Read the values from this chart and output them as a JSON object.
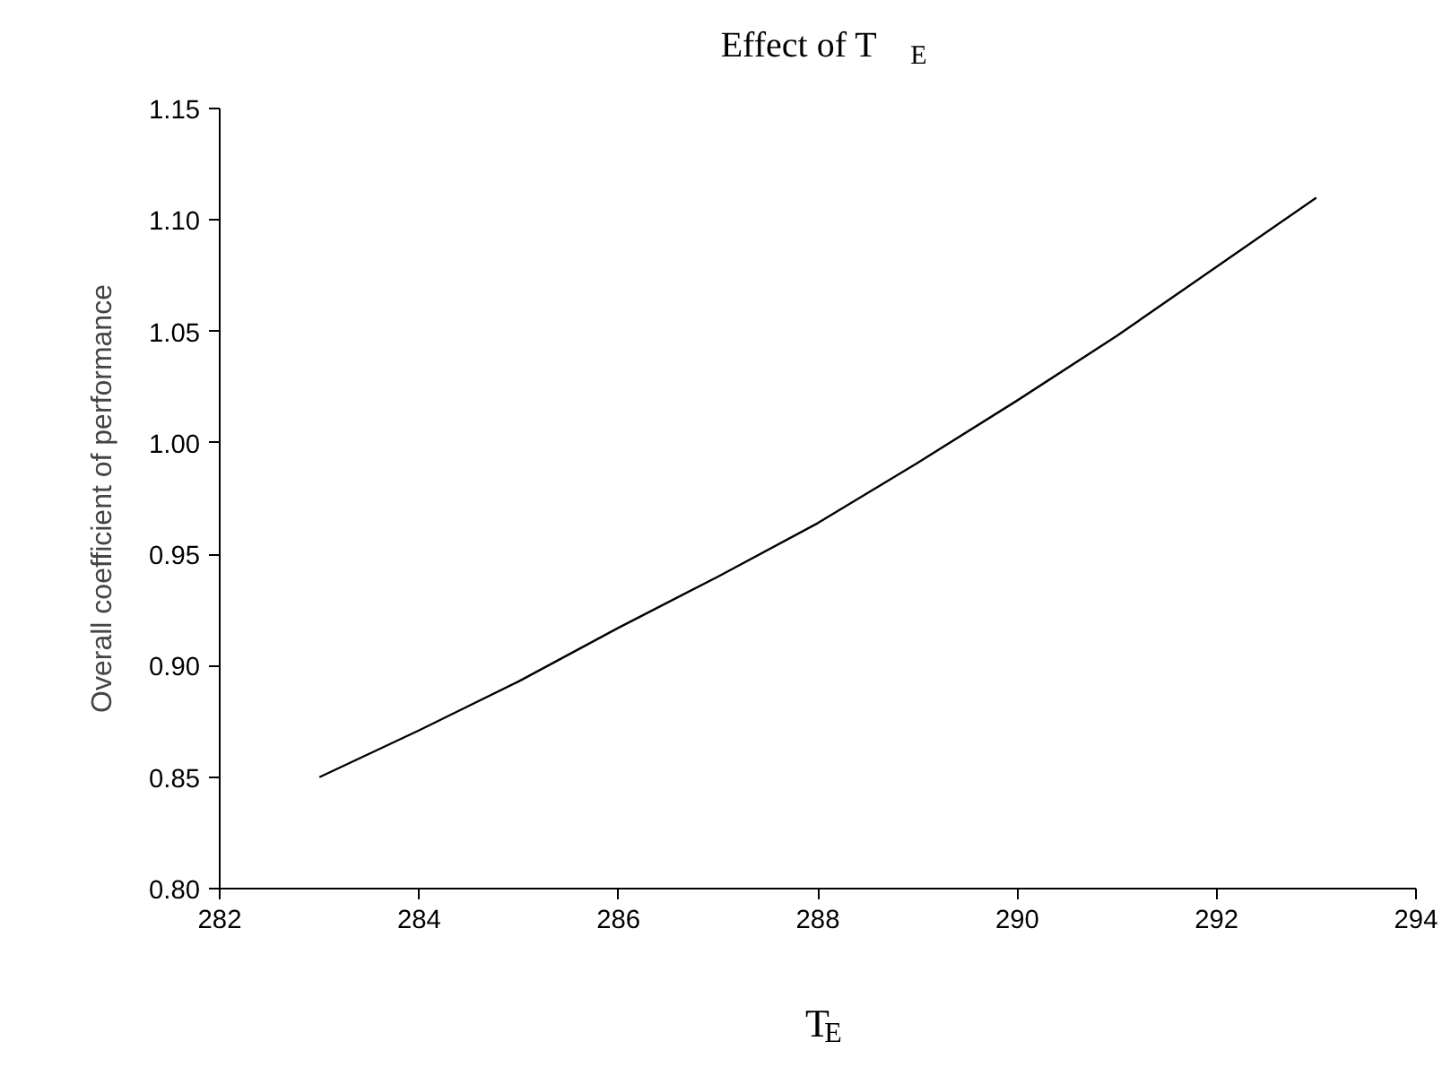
{
  "chart_data": {
    "type": "line",
    "title": "Effect of T$_{E}$",
    "xlabel": "T$_{E}$",
    "ylabel": "Overall coefficient of performance",
    "x": [
      283,
      284,
      285,
      286,
      287,
      288,
      289,
      290,
      291,
      292,
      293
    ],
    "series": [
      {
        "color": "#000000",
        "values": [
          0.85,
          0.871,
          0.893,
          0.917,
          0.94,
          0.964,
          0.991,
          1.019,
          1.048,
          1.079,
          1.11
        ]
      }
    ],
    "xlim": [
      282,
      294
    ],
    "xticks": [
      282,
      284,
      286,
      288,
      290,
      292,
      294
    ],
    "ylim": [
      0.8,
      1.15
    ],
    "yticks": [
      {
        "value": 0.8,
        "label": "0.80"
      },
      0.85,
      {
        "value": 0.9,
        "label": "0.90"
      },
      0.95,
      {
        "value": 1.0,
        "label": "1.00"
      },
      1.05,
      {
        "value": 1.1,
        "label": "1.10"
      },
      1.15
    ],
    "grid": false,
    "marker": "none",
    "line_style": "solid"
  }
}
